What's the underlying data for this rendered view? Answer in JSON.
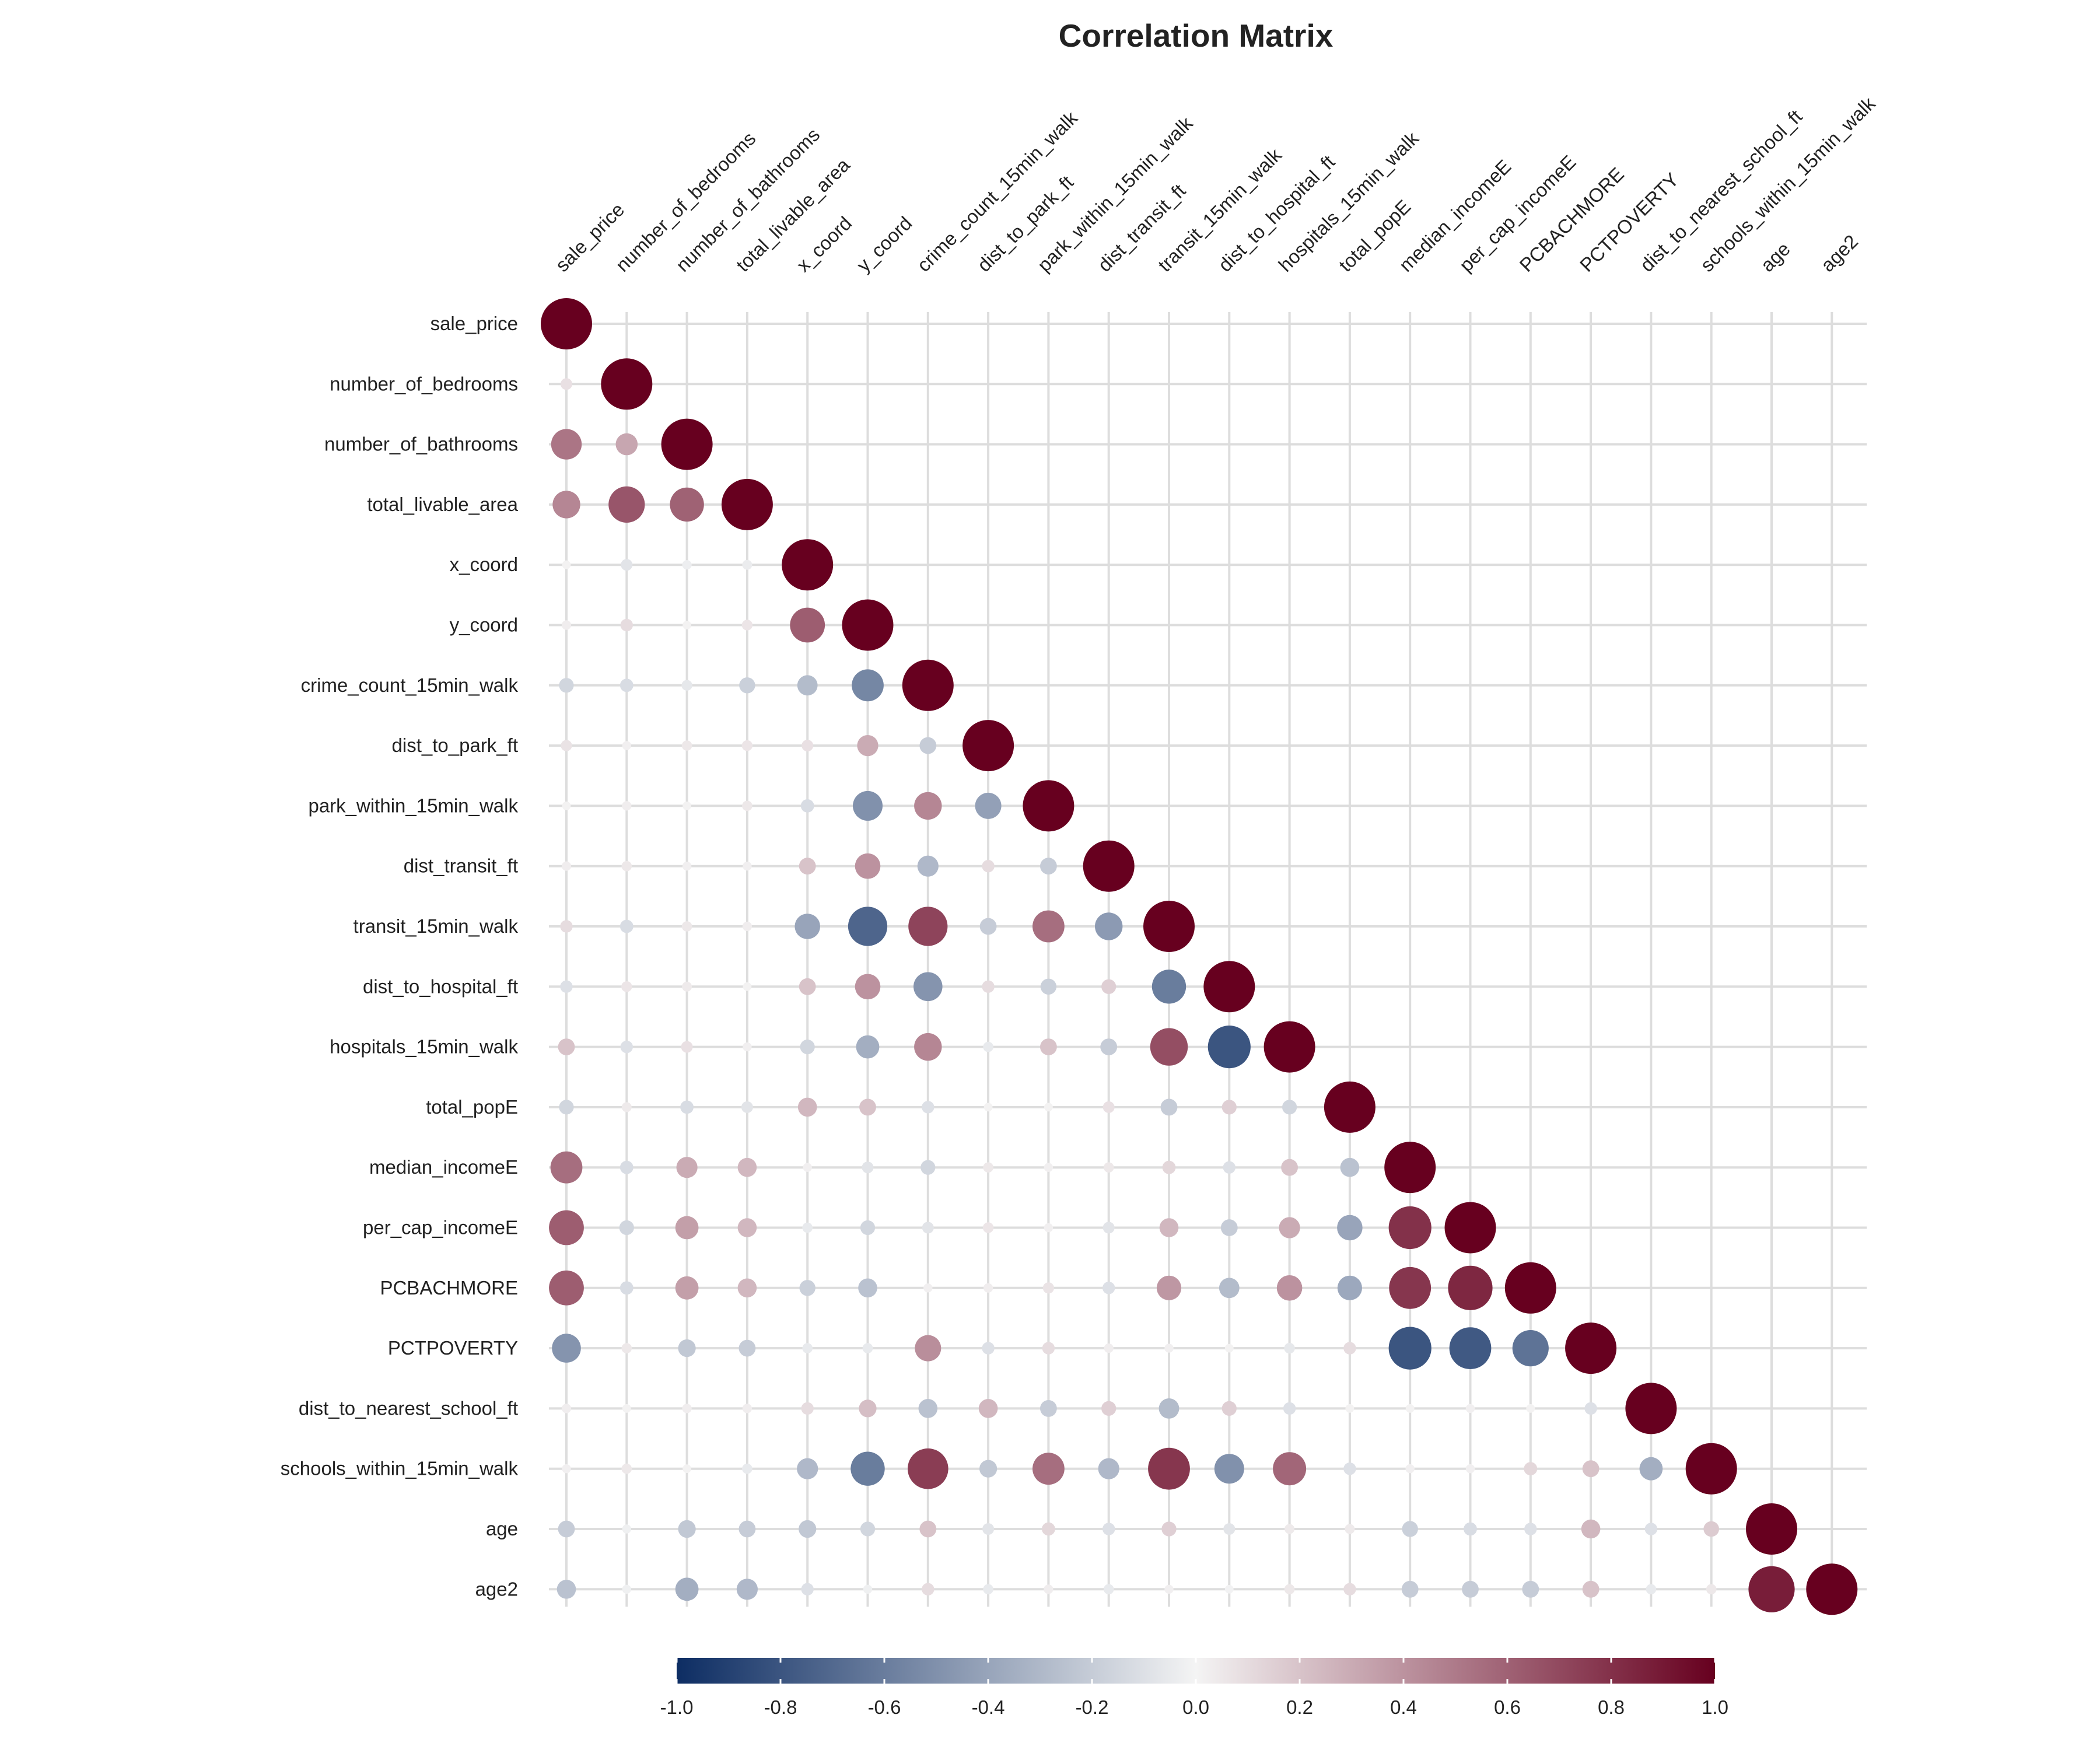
{
  "chart_data": {
    "type": "heatmap",
    "title": "Correlation Matrix",
    "variables": [
      "sale_price",
      "number_of_bedrooms",
      "number_of_bathrooms",
      "total_livable_area",
      "x_coord",
      "y_coord",
      "crime_count_15min_walk",
      "dist_to_park_ft",
      "park_within_15min_walk",
      "dist_transit_ft",
      "transit_15min_walk",
      "dist_to_hospital_ft",
      "hospitals_15min_walk",
      "total_popE",
      "median_incomeE",
      "per_cap_incomeE",
      "PCBACHMORE",
      "PCTPOVERTY",
      "dist_to_nearest_school_ft",
      "schools_within_15min_walk",
      "age",
      "age2"
    ],
    "lower_triangle": [
      [
        1.0
      ],
      [
        0.08,
        1.0
      ],
      [
        0.52,
        0.32,
        1.0
      ],
      [
        0.45,
        0.65,
        0.6,
        1.0
      ],
      [
        0.01,
        -0.08,
        -0.03,
        -0.04,
        1.0
      ],
      [
        0.03,
        0.1,
        0.01,
        0.06,
        0.62,
        1.0
      ],
      [
        -0.15,
        -0.12,
        -0.06,
        -0.18,
        -0.28,
        -0.55,
        1.0
      ],
      [
        0.07,
        0.02,
        0.05,
        0.06,
        0.08,
        0.3,
        -0.2,
        1.0
      ],
      [
        0.01,
        0.03,
        0.01,
        0.05,
        -0.12,
        -0.5,
        0.45,
        -0.42,
        1.0
      ],
      [
        0.03,
        0.05,
        0.02,
        0.02,
        0.2,
        0.4,
        -0.3,
        0.1,
        -0.2,
        1.0
      ],
      [
        0.1,
        -0.12,
        0.05,
        0.03,
        -0.4,
        -0.72,
        0.72,
        -0.2,
        0.55,
        -0.45,
        1.0
      ],
      [
        -0.1,
        0.06,
        0.04,
        0.01,
        0.2,
        0.4,
        -0.48,
        0.1,
        -0.18,
        0.15,
        -0.6,
        1.0
      ],
      [
        0.2,
        -0.1,
        0.08,
        0.02,
        -0.15,
        -0.35,
        0.45,
        -0.05,
        0.2,
        -0.2,
        0.68,
        -0.8,
        1.0
      ],
      [
        -0.15,
        0.04,
        -0.12,
        -0.08,
        0.25,
        0.2,
        -0.1,
        0.01,
        0.01,
        0.08,
        -0.2,
        0.15,
        -0.15,
        1.0
      ],
      [
        0.55,
        -0.12,
        0.3,
        0.25,
        0.02,
        -0.08,
        -0.15,
        0.05,
        0.02,
        0.05,
        0.12,
        -0.1,
        0.2,
        -0.25,
        1.0
      ],
      [
        0.62,
        -0.15,
        0.35,
        0.25,
        -0.05,
        -0.15,
        -0.08,
        0.06,
        0.02,
        -0.08,
        0.25,
        -0.2,
        0.3,
        -0.4,
        0.8,
        1.0
      ],
      [
        0.62,
        -0.12,
        0.35,
        0.25,
        -0.18,
        -0.25,
        0.02,
        0.03,
        0.07,
        -0.1,
        0.38,
        -0.28,
        0.4,
        -0.38,
        0.78,
        0.84,
        1.0
      ],
      [
        -0.48,
        0.05,
        -0.22,
        -0.2,
        -0.05,
        -0.05,
        0.42,
        -0.1,
        0.1,
        0.03,
        0.02,
        0.01,
        -0.06,
        0.1,
        -0.8,
        -0.78,
        -0.65,
        1.0
      ],
      [
        0.03,
        0.01,
        0.03,
        0.03,
        0.1,
        0.22,
        -0.25,
        0.25,
        -0.2,
        0.15,
        -0.28,
        0.15,
        -0.1,
        0.01,
        0.01,
        0.02,
        0.01,
        -0.1,
        1.0
      ],
      [
        0.02,
        0.05,
        0.01,
        -0.05,
        -0.3,
        -0.6,
        0.75,
        -0.22,
        0.55,
        -0.3,
        0.78,
        -0.5,
        0.58,
        -0.1,
        0.02,
        0.02,
        0.12,
        0.2,
        -0.35,
        1.0
      ],
      [
        -0.2,
        -0.02,
        -0.22,
        -0.2,
        -0.22,
        -0.15,
        0.2,
        -0.08,
        0.12,
        -0.1,
        0.15,
        -0.08,
        0.04,
        0.04,
        -0.18,
        -0.12,
        -0.1,
        0.25,
        -0.1,
        0.17,
        1.0
      ],
      [
        -0.25,
        -0.02,
        -0.35,
        -0.3,
        -0.1,
        -0.02,
        0.1,
        -0.05,
        0.03,
        -0.05,
        0.02,
        -0.01,
        0.05,
        0.1,
        -0.2,
        -0.2,
        -0.2,
        0.2,
        -0.05,
        0.05,
        0.88,
        1.0
      ]
    ],
    "colorbar": {
      "range": [
        -1.0,
        1.0
      ],
      "ticks": [
        "-1.0",
        "-0.8",
        "-0.6",
        "-0.4",
        "-0.2",
        "0.0",
        "0.2",
        "0.4",
        "0.6",
        "0.8",
        "1.0"
      ],
      "colors": {
        "negative": "#0d2d63",
        "neutral": "#f4f4f4",
        "positive": "#67001f"
      }
    },
    "grid": true,
    "legend": "bottom"
  }
}
